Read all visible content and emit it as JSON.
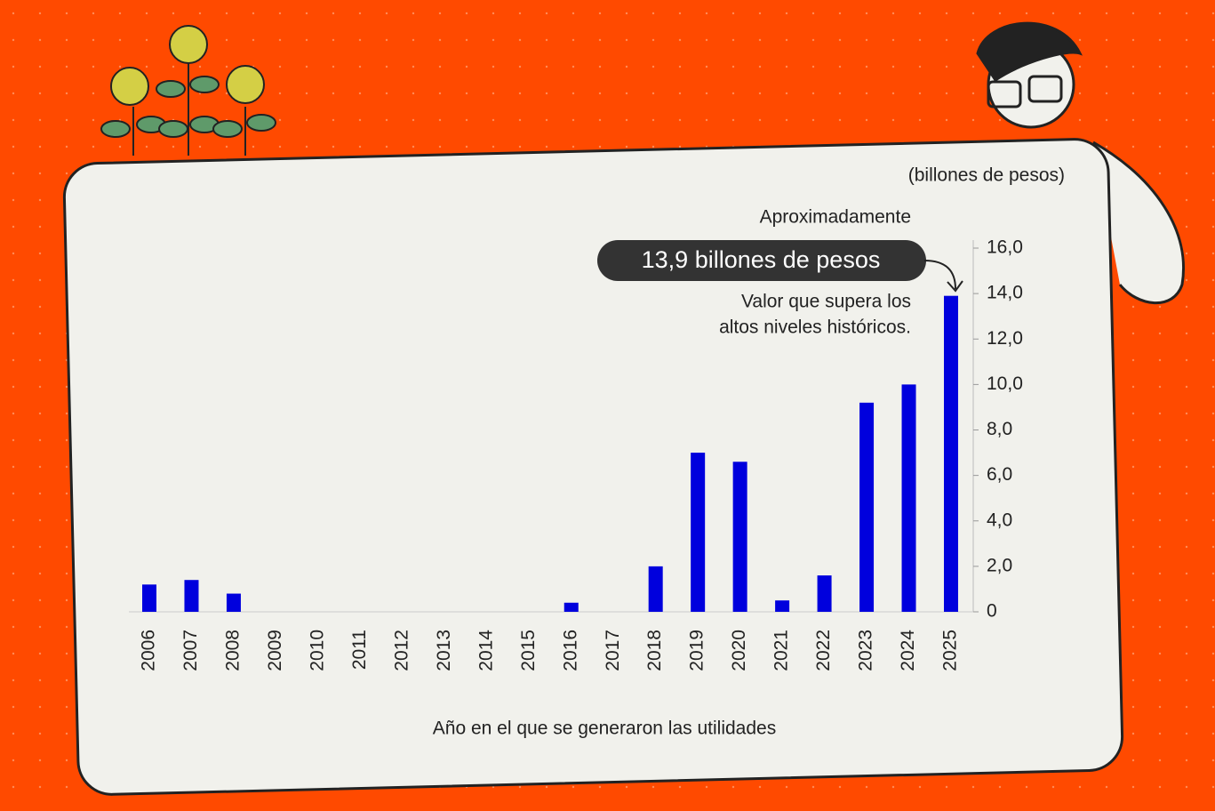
{
  "chart_data": {
    "type": "bar",
    "unit_label": "(billones de pesos)",
    "x_label": "Año en el que se generaron las utilidades",
    "categories": [
      "2006",
      "2007",
      "2008",
      "2009",
      "2010",
      "2011",
      "2012",
      "2013",
      "2014",
      "2015",
      "2016",
      "2017",
      "2018",
      "2019",
      "2020",
      "2021",
      "2022",
      "2023",
      "2024",
      "2025"
    ],
    "values": [
      1.2,
      1.4,
      0.8,
      0,
      0,
      0,
      0,
      0,
      0,
      0,
      0.4,
      0,
      2.0,
      7.0,
      6.6,
      0.5,
      1.6,
      9.2,
      10.0,
      13.9
    ],
    "color": "#0000dd",
    "ylim": [
      0,
      16
    ],
    "yticks": [
      0,
      {
        "value": 2,
        "label": "2,0"
      },
      {
        "value": 4,
        "label": "4,0"
      },
      {
        "value": 6,
        "label": "6,0"
      },
      {
        "value": 8,
        "label": "8,0"
      },
      {
        "value": 10,
        "label": "10,0"
      },
      {
        "value": 12,
        "label": "12,0"
      },
      {
        "value": 14,
        "label": "14,0"
      },
      {
        "value": 16,
        "label": "16,0"
      }
    ],
    "grid": false,
    "annotation": {
      "lead": "Aproximadamente",
      "highlight": "13,9 billones de pesos",
      "note": [
        "Valor que supera los",
        "altos niveles históricos."
      ]
    }
  }
}
